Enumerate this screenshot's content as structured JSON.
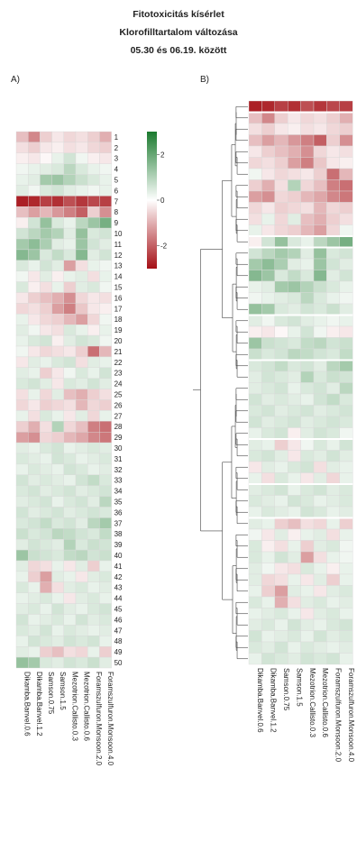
{
  "header": {
    "title": "Fitotoxicitás kísérlet",
    "subtitle": "Klorofilltartalom változása",
    "date_range": "05.30 és 06.19. között"
  },
  "panels": {
    "a_label": "A)",
    "b_label": "B)"
  },
  "colors": {
    "low": "#a50f15",
    "mid": "#ffffff",
    "high": "#1b7a2e",
    "grid": "#d9d9d9"
  },
  "chart_data": [
    {
      "type": "heatmap",
      "panel": "A)",
      "columns": [
        "Dikamba.Banvel.0.6",
        "Dikamba.Banvel.1.2",
        "Samson.0.75",
        "Samson.1.5",
        "Mezotrion.Callisto.0.3",
        "Mezotrion.Callisto.0.6",
        "Foramszulfuron.Monsoon.2.0",
        "Foramszulfuron.Monsoon.4.0"
      ],
      "rows": [
        "1",
        "2",
        "3",
        "4",
        "5",
        "6",
        "7",
        "8",
        "9",
        "10",
        "11",
        "12",
        "13",
        "14",
        "15",
        "16",
        "17",
        "18",
        "19",
        "20",
        "21",
        "22",
        "23",
        "24",
        "25",
        "26",
        "27",
        "28",
        "29",
        "30",
        "31",
        "32",
        "33",
        "34",
        "35",
        "36",
        "37",
        "38",
        "39",
        "40",
        "41",
        "42",
        "43",
        "44",
        "45",
        "46",
        "47",
        "48",
        "49",
        "50"
      ],
      "legend": {
        "ticks": [
          2,
          0,
          -2
        ],
        "range": [
          -3,
          3
        ]
      },
      "values": [
        [
          -0.8,
          -1.5,
          -0.6,
          -0.3,
          -0.5,
          -0.4,
          -0.6,
          -1.0
        ],
        [
          -0.4,
          -0.6,
          -0.3,
          -0.2,
          -0.4,
          -0.3,
          -0.5,
          -0.6
        ],
        [
          -0.2,
          -0.3,
          -0.1,
          0.3,
          0.6,
          0.2,
          -0.2,
          -0.3
        ],
        [
          0.2,
          0.3,
          0.4,
          0.5,
          0.9,
          0.5,
          0.3,
          0.2
        ],
        [
          0.3,
          0.4,
          1.2,
          1.3,
          1.0,
          0.7,
          0.5,
          0.3
        ],
        [
          0.4,
          0.2,
          0.5,
          0.6,
          0.4,
          0.3,
          0.2,
          0.3
        ],
        [
          -2.8,
          -2.7,
          -2.4,
          -2.6,
          -2.2,
          -2.5,
          -2.3,
          -2.4
        ],
        [
          -0.8,
          -1.2,
          -0.9,
          -1.3,
          -1.6,
          -2.0,
          -0.6,
          -1.4
        ],
        [
          -0.2,
          0.6,
          1.4,
          0.5,
          0.3,
          0.9,
          1.3,
          1.8
        ],
        [
          0.6,
          0.9,
          1.2,
          1.0,
          0.4,
          1.4,
          0.5,
          0.6
        ],
        [
          1.2,
          1.5,
          1.1,
          0.4,
          0.3,
          1.3,
          0.6,
          0.4
        ],
        [
          1.6,
          1.3,
          0.5,
          0.8,
          0.5,
          1.6,
          0.4,
          0.6
        ],
        [
          0.5,
          0.3,
          0.6,
          0.4,
          -1.2,
          -0.4,
          0.3,
          0.2
        ],
        [
          0.2,
          -0.3,
          0.4,
          -0.2,
          0.3,
          0.4,
          -0.4,
          0.3
        ],
        [
          0.5,
          -0.2,
          -0.4,
          0.3,
          -0.6,
          0.4,
          0.5,
          0.2
        ],
        [
          -0.3,
          -0.6,
          -0.8,
          -1.0,
          -1.4,
          -0.5,
          -0.3,
          -0.4
        ],
        [
          -0.5,
          -0.4,
          -0.6,
          -1.2,
          -1.6,
          -0.7,
          -0.3,
          -0.2
        ],
        [
          0.3,
          -0.3,
          -0.5,
          -0.6,
          -0.9,
          -1.2,
          -0.5,
          0.2
        ],
        [
          0.4,
          0.2,
          -0.3,
          -0.4,
          0.5,
          0.3,
          -0.2,
          0.3
        ],
        [
          0.3,
          0.5,
          0.6,
          -0.2,
          0.4,
          0.6,
          0.5,
          0.2
        ],
        [
          0.2,
          -0.3,
          -0.5,
          -0.4,
          -0.3,
          -0.6,
          -1.8,
          -0.9
        ],
        [
          -0.3,
          0.4,
          0.3,
          0.5,
          0.6,
          -0.4,
          0.4,
          0.3
        ],
        [
          0.4,
          0.3,
          -0.6,
          -0.3,
          0.2,
          0.5,
          0.3,
          0.6
        ],
        [
          0.5,
          0.6,
          0.4,
          -0.3,
          0.5,
          0.4,
          0.6,
          0.4
        ],
        [
          -0.4,
          0.3,
          -0.5,
          0.4,
          -0.8,
          -1.0,
          -0.6,
          -0.4
        ],
        [
          -0.5,
          -0.3,
          -0.6,
          -0.5,
          -0.4,
          -0.9,
          -0.5,
          -0.6
        ],
        [
          0.3,
          -0.4,
          0.5,
          0.3,
          -0.3,
          0.4,
          -0.5,
          0.3
        ],
        [
          -0.6,
          -1.0,
          -0.4,
          1.0,
          -0.5,
          -0.8,
          -1.6,
          -1.8
        ],
        [
          -1.2,
          -1.4,
          -0.5,
          -0.6,
          -0.9,
          -1.1,
          -1.5,
          -1.7
        ],
        [
          0.4,
          0.3,
          0.5,
          0.6,
          0.3,
          0.4,
          0.5,
          0.4
        ],
        [
          0.5,
          0.4,
          0.3,
          0.6,
          0.5,
          0.3,
          0.4,
          0.5
        ],
        [
          0.3,
          0.5,
          0.4,
          0.3,
          0.6,
          0.5,
          0.3,
          0.4
        ],
        [
          0.6,
          0.4,
          0.5,
          0.4,
          0.3,
          0.6,
          0.8,
          0.5
        ],
        [
          0.5,
          0.6,
          0.4,
          0.5,
          0.6,
          0.4,
          0.5,
          0.6
        ],
        [
          0.4,
          0.5,
          0.6,
          0.3,
          0.5,
          0.6,
          0.4,
          0.9
        ],
        [
          0.6,
          0.4,
          0.5,
          0.6,
          0.4,
          0.5,
          0.6,
          0.5
        ],
        [
          0.5,
          0.6,
          0.8,
          0.5,
          0.6,
          0.4,
          0.9,
          1.2
        ],
        [
          0.7,
          0.5,
          0.6,
          0.9,
          0.8,
          0.6,
          0.5,
          0.8
        ],
        [
          0.4,
          0.6,
          0.5,
          0.4,
          1.0,
          0.5,
          0.7,
          0.6
        ],
        [
          1.3,
          0.7,
          0.6,
          0.5,
          0.8,
          0.9,
          0.6,
          0.7
        ],
        [
          0.4,
          -0.5,
          -0.4,
          0.3,
          -0.3,
          0.4,
          -0.6,
          0.3
        ],
        [
          0.3,
          -0.6,
          -1.2,
          0.4,
          0.3,
          -0.3,
          0.4,
          0.5
        ],
        [
          0.5,
          0.3,
          -1.0,
          -0.4,
          0.4,
          0.5,
          0.3,
          0.4
        ],
        [
          0.3,
          0.4,
          0.5,
          0.3,
          -0.3,
          0.4,
          0.5,
          0.3
        ],
        [
          0.4,
          0.5,
          0.3,
          0.6,
          0.4,
          0.3,
          0.5,
          0.6
        ],
        [
          0.6,
          0.3,
          0.4,
          0.5,
          0.3,
          0.6,
          0.4,
          0.5
        ],
        [
          0.5,
          0.4,
          0.6,
          0.3,
          0.5,
          0.4,
          0.3,
          0.4
        ],
        [
          0.3,
          0.6,
          0.5,
          0.4,
          0.6,
          0.5,
          0.6,
          0.3
        ],
        [
          0.4,
          0.3,
          -0.6,
          -0.8,
          -0.4,
          -0.5,
          0.3,
          -0.6
        ],
        [
          1.4,
          1.2,
          0.5,
          0.4,
          0.6,
          0.5,
          0.7,
          0.4
        ]
      ]
    },
    {
      "type": "heatmap",
      "panel": "B)",
      "note": "clustered rows with dendrogram; row labels not printed",
      "columns": [
        "Dikamba.Banvel.0.6",
        "Dikamba.Banvel.1.2",
        "Samson.0.75",
        "Samson.1.5",
        "Mezotrion.Callisto.0.3",
        "Mezotrion.Callisto.0.6",
        "Foramszulfuron.Monsoon.2.0",
        "Foramszulfuron.Monsoon.4.0"
      ],
      "values": [
        [
          -2.8,
          -2.7,
          -2.4,
          -2.6,
          -2.2,
          -2.5,
          -2.3,
          -2.4
        ],
        [
          -0.8,
          -1.5,
          -0.6,
          -0.3,
          -0.5,
          -0.4,
          -0.6,
          -1.0
        ],
        [
          -0.4,
          -0.6,
          -0.3,
          -0.2,
          -0.4,
          -0.3,
          -0.5,
          -0.6
        ],
        [
          -0.8,
          -1.2,
          -0.9,
          -1.3,
          -1.6,
          -2.0,
          -0.6,
          -1.4
        ],
        [
          -0.3,
          -0.6,
          -0.8,
          -1.0,
          -1.4,
          -0.5,
          -0.3,
          -0.4
        ],
        [
          -0.5,
          -0.4,
          -0.6,
          -1.2,
          -1.6,
          -0.7,
          -0.3,
          -0.2
        ],
        [
          0.2,
          -0.3,
          -0.5,
          -0.4,
          -0.3,
          -0.6,
          -1.8,
          -0.9
        ],
        [
          -0.6,
          -1.0,
          -0.4,
          1.0,
          -0.5,
          -0.8,
          -1.6,
          -1.8
        ],
        [
          -1.2,
          -1.4,
          -0.5,
          -0.6,
          -0.9,
          -1.1,
          -1.5,
          -1.7
        ],
        [
          -0.5,
          -0.3,
          -0.6,
          -0.5,
          -0.4,
          -0.9,
          -0.5,
          -0.6
        ],
        [
          -0.4,
          0.3,
          -0.5,
          0.4,
          -0.8,
          -1.0,
          -0.6,
          -0.4
        ],
        [
          0.3,
          -0.3,
          -0.5,
          -0.6,
          -0.9,
          -1.2,
          -0.5,
          0.2
        ],
        [
          -0.2,
          0.6,
          1.4,
          0.5,
          0.3,
          0.9,
          1.3,
          1.8
        ],
        [
          0.6,
          0.9,
          1.2,
          1.0,
          0.4,
          1.4,
          0.5,
          0.6
        ],
        [
          1.2,
          1.5,
          1.1,
          0.4,
          0.3,
          1.3,
          0.6,
          0.4
        ],
        [
          1.6,
          1.3,
          0.5,
          0.8,
          0.5,
          1.6,
          0.4,
          0.6
        ],
        [
          0.3,
          0.4,
          1.2,
          1.3,
          1.0,
          0.7,
          0.5,
          0.3
        ],
        [
          0.2,
          0.3,
          0.4,
          0.5,
          0.9,
          0.5,
          0.3,
          0.2
        ],
        [
          1.4,
          1.2,
          0.5,
          0.4,
          0.6,
          0.5,
          0.7,
          0.4
        ],
        [
          0.4,
          0.2,
          0.5,
          0.6,
          0.4,
          0.3,
          0.2,
          0.3
        ],
        [
          -0.2,
          -0.3,
          -0.1,
          0.3,
          0.6,
          0.2,
          -0.2,
          -0.3
        ],
        [
          1.3,
          0.7,
          0.6,
          0.5,
          0.8,
          0.9,
          0.6,
          0.7
        ],
        [
          0.7,
          0.5,
          0.6,
          0.9,
          0.8,
          0.6,
          0.5,
          0.8
        ],
        [
          0.5,
          0.6,
          0.8,
          0.5,
          0.6,
          0.4,
          0.9,
          1.2
        ],
        [
          0.4,
          0.6,
          0.5,
          0.4,
          1.0,
          0.5,
          0.7,
          0.6
        ],
        [
          0.4,
          0.5,
          0.6,
          0.3,
          0.5,
          0.6,
          0.4,
          0.9
        ],
        [
          0.6,
          0.4,
          0.5,
          0.4,
          0.3,
          0.6,
          0.8,
          0.5
        ],
        [
          0.5,
          0.6,
          0.4,
          0.5,
          0.6,
          0.4,
          0.5,
          0.6
        ],
        [
          0.6,
          0.4,
          0.5,
          0.6,
          0.4,
          0.5,
          0.6,
          0.5
        ],
        [
          0.3,
          0.5,
          0.6,
          -0.2,
          0.4,
          0.6,
          0.5,
          0.2
        ],
        [
          0.4,
          0.3,
          -0.6,
          -0.3,
          0.2,
          0.5,
          0.3,
          0.6
        ],
        [
          0.5,
          0.6,
          0.4,
          -0.3,
          0.5,
          0.4,
          0.6,
          0.4
        ],
        [
          -0.3,
          0.4,
          0.3,
          0.5,
          0.6,
          -0.4,
          0.4,
          0.3
        ],
        [
          0.3,
          -0.4,
          0.5,
          0.3,
          -0.3,
          0.4,
          -0.5,
          0.3
        ],
        [
          0.4,
          0.5,
          0.6,
          0.3,
          0.5,
          0.6,
          0.4,
          0.5
        ],
        [
          0.5,
          0.4,
          0.3,
          0.6,
          0.5,
          0.3,
          0.4,
          0.5
        ],
        [
          0.3,
          0.5,
          0.4,
          0.3,
          0.6,
          0.5,
          0.3,
          0.4
        ],
        [
          0.4,
          0.3,
          -0.6,
          -0.8,
          -0.4,
          -0.5,
          0.3,
          -0.6
        ],
        [
          0.2,
          -0.3,
          0.4,
          -0.2,
          0.3,
          0.4,
          -0.4,
          0.3
        ],
        [
          0.5,
          -0.2,
          -0.4,
          0.3,
          -0.6,
          0.4,
          0.5,
          0.2
        ],
        [
          0.5,
          0.3,
          0.6,
          0.4,
          -1.2,
          -0.4,
          0.3,
          0.2
        ],
        [
          0.4,
          0.2,
          -0.3,
          -0.4,
          0.5,
          0.3,
          -0.2,
          0.3
        ],
        [
          0.4,
          -0.5,
          -0.4,
          0.3,
          -0.3,
          0.4,
          -0.6,
          0.3
        ],
        [
          0.3,
          -0.6,
          -1.2,
          0.4,
          0.3,
          -0.3,
          0.4,
          0.5
        ],
        [
          0.5,
          0.3,
          -1.0,
          -0.4,
          0.4,
          0.5,
          0.3,
          0.4
        ],
        [
          0.3,
          0.4,
          0.5,
          0.3,
          -0.3,
          0.4,
          0.5,
          0.3
        ],
        [
          0.4,
          0.5,
          0.3,
          0.6,
          0.4,
          0.3,
          0.5,
          0.6
        ],
        [
          0.6,
          0.3,
          0.4,
          0.5,
          0.3,
          0.6,
          0.4,
          0.5
        ],
        [
          0.5,
          0.4,
          0.6,
          0.3,
          0.5,
          0.4,
          0.3,
          0.4
        ],
        [
          0.3,
          0.6,
          0.5,
          0.4,
          0.6,
          0.5,
          0.6,
          0.3
        ]
      ]
    }
  ]
}
